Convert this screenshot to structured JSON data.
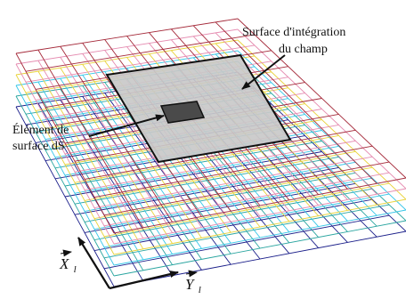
{
  "labels": {
    "integration_surface_line1": "Surface d'intégration",
    "integration_surface_line2": "du champ",
    "surface_element_line1": "Élément de",
    "surface_element_line2": "surface dS",
    "axis_x_symbol": "X",
    "axis_x_subscript": "l",
    "axis_y_symbol": "Y",
    "axis_y_subscript": "l"
  },
  "colors": {
    "layers": [
      "#1b1f8a",
      "#2aa5a0",
      "#35c6e8",
      "#e8d23a",
      "#e58bb0",
      "#a52a3a"
    ],
    "integration_surface_fill": "#c9c9c9",
    "surface_element_fill": "#4a4a4a",
    "outline": "#111111"
  },
  "icons": {
    "axis_arrows": "coordinate-axes-icon",
    "callout_arrow": "arrow-icon"
  }
}
